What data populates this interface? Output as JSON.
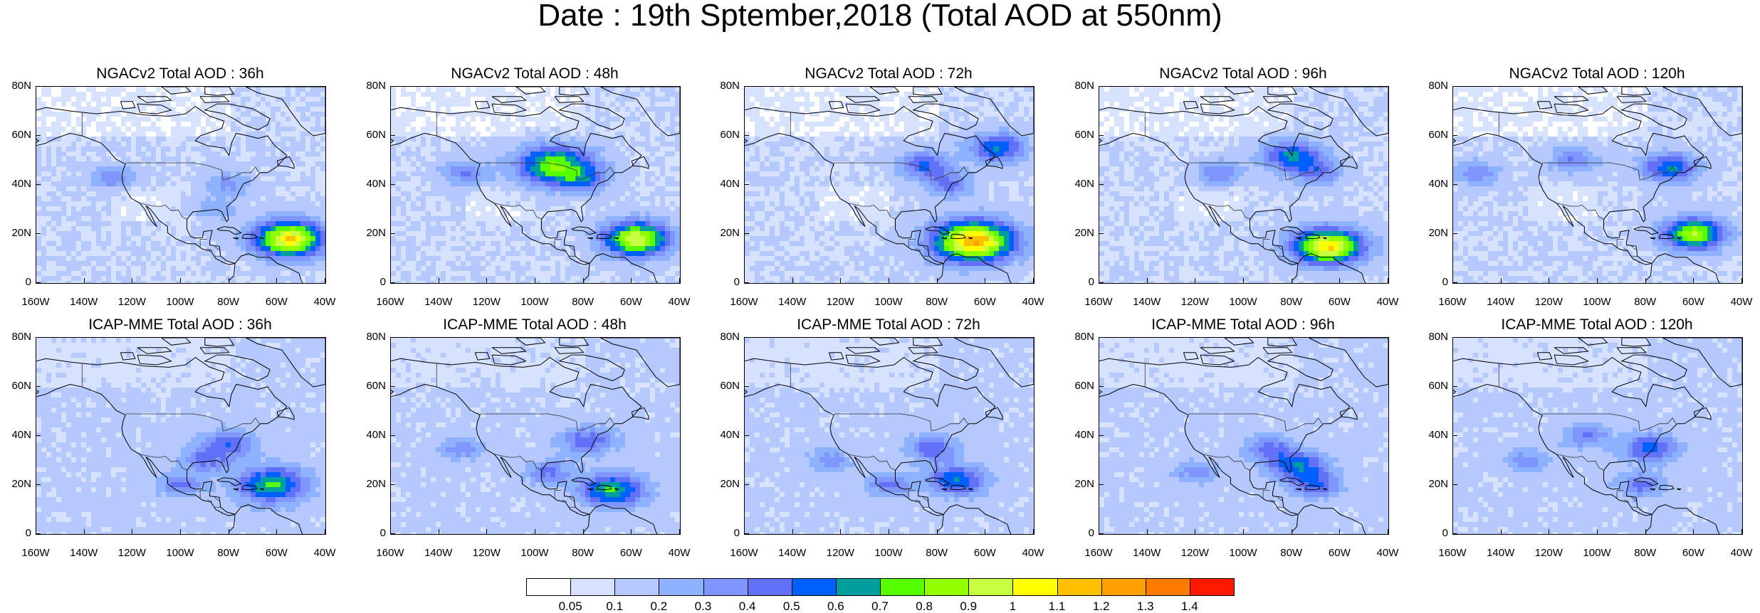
{
  "title": "Date : 19th Sptember,2018 (Total AOD at 550nm)",
  "x_ticks": [
    "160W",
    "140W",
    "120W",
    "100W",
    "80W",
    "60W",
    "40W"
  ],
  "y_ticks": [
    "80N",
    "60N",
    "40N",
    "20N",
    "0"
  ],
  "panels": [
    {
      "title": "NGACv2 Total AOD : 36h",
      "row": 0,
      "col": 0,
      "hotspots": [
        [
          -55,
          18,
          1.0,
          0.7
        ],
        [
          -128,
          43,
          0.3,
          0.25
        ],
        [
          -85,
          30,
          0.2,
          0.2
        ],
        [
          -80,
          40,
          0.25,
          0.3
        ]
      ]
    },
    {
      "title": "NGACv2 Total AOD : 48h",
      "row": 0,
      "col": 1,
      "hotspots": [
        [
          -58,
          18,
          0.9,
          0.65
        ],
        [
          -92,
          48,
          0.7,
          0.85
        ],
        [
          -80,
          42,
          0.3,
          0.35
        ],
        [
          -130,
          45,
          0.3,
          0.3
        ]
      ]
    },
    {
      "title": "NGACv2 Total AOD : 72h",
      "row": 0,
      "col": 2,
      "hotspots": [
        [
          -65,
          17,
          1.1,
          0.9
        ],
        [
          -55,
          55,
          0.5,
          0.5
        ],
        [
          -85,
          48,
          0.4,
          0.45
        ],
        [
          -75,
          40,
          0.3,
          0.35
        ]
      ]
    },
    {
      "title": "NGACv2 Total AOD : 96h",
      "row": 0,
      "col": 3,
      "hotspots": [
        [
          -65,
          15,
          1.0,
          0.7
        ],
        [
          -80,
          52,
          0.5,
          0.55
        ],
        [
          -70,
          45,
          0.3,
          0.4
        ],
        [
          -110,
          45,
          0.3,
          0.3
        ]
      ]
    },
    {
      "title": "NGACv2 Total AOD : 120h",
      "row": 0,
      "col": 4,
      "hotspots": [
        [
          -60,
          20,
          0.8,
          0.55
        ],
        [
          -70,
          47,
          0.5,
          0.5
        ],
        [
          -110,
          50,
          0.3,
          0.35
        ],
        [
          -150,
          45,
          0.3,
          0.3
        ]
      ]
    },
    {
      "title": "ICAP-MME Total AOD : 36h",
      "row": 1,
      "col": 0,
      "hotspots": [
        [
          -62,
          20,
          0.6,
          0.7
        ],
        [
          -80,
          37,
          0.35,
          0.45
        ],
        [
          -90,
          30,
          0.3,
          0.35
        ],
        [
          -100,
          20,
          0.3,
          0.3
        ]
      ]
    },
    {
      "title": "ICAP-MME Total AOD : 48h",
      "row": 1,
      "col": 1,
      "hotspots": [
        [
          -68,
          18,
          0.6,
          0.6
        ],
        [
          -78,
          38,
          0.35,
          0.45
        ],
        [
          -95,
          25,
          0.3,
          0.3
        ],
        [
          -130,
          35,
          0.25,
          0.25
        ]
      ]
    },
    {
      "title": "ICAP-MME Total AOD : 72h",
      "row": 1,
      "col": 2,
      "hotspots": [
        [
          -72,
          22,
          0.5,
          0.5
        ],
        [
          -82,
          35,
          0.35,
          0.4
        ],
        [
          -100,
          20,
          0.3,
          0.3
        ],
        [
          -125,
          30,
          0.25,
          0.25
        ]
      ]
    },
    {
      "title": "ICAP-MME Total AOD : 96h",
      "row": 1,
      "col": 3,
      "hotspots": [
        [
          -78,
          28,
          0.45,
          0.5
        ],
        [
          -70,
          20,
          0.35,
          0.4
        ],
        [
          -90,
          35,
          0.3,
          0.35
        ],
        [
          -120,
          25,
          0.25,
          0.25
        ]
      ]
    },
    {
      "title": "ICAP-MME Total AOD : 120h",
      "row": 1,
      "col": 4,
      "hotspots": [
        [
          -78,
          35,
          0.45,
          0.45
        ],
        [
          -82,
          20,
          0.3,
          0.35
        ],
        [
          -105,
          40,
          0.3,
          0.3
        ],
        [
          -130,
          30,
          0.25,
          0.25
        ]
      ]
    }
  ],
  "colorbar": {
    "colors": [
      "#ffffff",
      "#d6e2ff",
      "#b5c9ff",
      "#8eb2ff",
      "#7f96ff",
      "#6370f8",
      "#0060ff",
      "#009e9e",
      "#55ff00",
      "#91ff00",
      "#c8ff41",
      "#ffff00",
      "#ffc000",
      "#ffa000",
      "#ff7c00",
      "#ff1900"
    ],
    "labels": [
      "0.05",
      "0.1",
      "0.2",
      "0.3",
      "0.4",
      "0.5",
      "0.6",
      "0.7",
      "0.8",
      "0.9",
      "1",
      "1.1",
      "1.2",
      "1.3",
      "1.4"
    ]
  }
}
